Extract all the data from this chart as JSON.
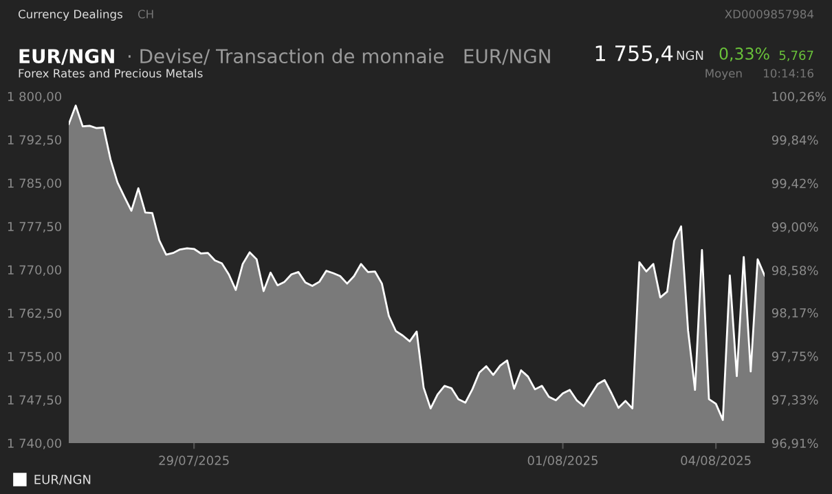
{
  "chart_data": {
    "type": "area",
    "title": "EUR/NGN",
    "subtitle": "· Devise/ Transaction de monnaie   EUR/NGN",
    "annotations": [
      "Currency Dealings",
      "CH",
      "XD0009857984",
      "Forex Rates and Precious Metals",
      "1 755,4",
      "NGN",
      "0,33%",
      "5,767",
      "Moyen",
      "10:14:16"
    ],
    "categories": [
      null,
      null,
      null,
      null,
      null,
      null,
      null,
      null,
      null,
      null,
      null,
      null,
      null,
      null,
      null,
      null,
      null,
      null,
      "29/07/2025",
      null,
      null,
      null,
      null,
      null,
      null,
      null,
      null,
      null,
      null,
      null,
      null,
      null,
      null,
      null,
      null,
      null,
      null,
      null,
      null,
      null,
      null,
      null,
      null,
      null,
      null,
      null,
      null,
      null,
      null,
      null,
      null,
      null,
      null,
      null,
      null,
      null,
      null,
      null,
      null,
      null,
      null,
      null,
      null,
      null,
      null,
      null,
      null,
      null,
      null,
      null,
      null,
      "01/08/2025",
      null,
      null,
      null,
      null,
      null,
      null,
      null,
      null,
      null,
      null,
      null,
      null,
      null,
      null,
      null,
      null,
      null,
      null,
      null,
      null,
      null,
      "04/08/2025",
      null,
      null,
      null,
      null,
      null,
      null,
      null
    ],
    "series": [
      {
        "name": "EUR/NGN",
        "color": "#ffffff",
        "values": [
          1795.2,
          1798.4,
          1794.8,
          1794.9,
          1794.5,
          1794.6,
          1789.1,
          1785.1,
          1782.6,
          1780.2,
          1784.1,
          1779.9,
          1779.8,
          1775.1,
          1772.6,
          1772.9,
          1773.5,
          1773.7,
          1773.6,
          1772.8,
          1772.9,
          1771.6,
          1771.1,
          1769.2,
          1766.5,
          1771.0,
          1773.0,
          1771.8,
          1766.3,
          1769.5,
          1767.3,
          1767.9,
          1769.2,
          1769.6,
          1767.8,
          1767.2,
          1767.9,
          1769.8,
          1769.4,
          1768.9,
          1767.6,
          1768.9,
          1771.0,
          1769.6,
          1769.7,
          1767.6,
          1762.0,
          1759.4,
          1758.6,
          1757.6,
          1759.3,
          1749.6,
          1746.0,
          1748.4,
          1749.9,
          1749.5,
          1747.6,
          1747.0,
          1749.3,
          1752.2,
          1753.3,
          1751.8,
          1753.4,
          1754.3,
          1749.4,
          1752.6,
          1751.5,
          1749.3,
          1749.9,
          1748.0,
          1747.4,
          1748.6,
          1749.2,
          1747.4,
          1746.4,
          1748.3,
          1750.2,
          1750.9,
          1748.6,
          1746.1,
          1747.3,
          1746.0,
          1771.3,
          1769.7,
          1771.0,
          1765.2,
          1766.2,
          1775.0,
          1777.5,
          1759.5,
          1749.2,
          1773.4,
          1747.6,
          1746.8,
          1744.0,
          1769.0,
          1751.6,
          1772.2,
          1752.4,
          1771.8,
          1769.0
        ]
      }
    ],
    "ylim": [
      1740,
      1800
    ],
    "yticks": [
      {
        "value": 1740,
        "label": "1 740,00"
      },
      {
        "value": 1747.5,
        "label": "1 747,50"
      },
      {
        "value": 1755,
        "label": "1 755,00"
      },
      {
        "value": 1762.5,
        "label": "1 762,50"
      },
      {
        "value": 1770,
        "label": "1 770,00"
      },
      {
        "value": 1777.5,
        "label": "1 777,50"
      },
      {
        "value": 1785,
        "label": "1 785,00"
      },
      {
        "value": 1792.5,
        "label": "1 792,50"
      },
      {
        "value": 1800,
        "label": "1 800,00"
      }
    ],
    "y2lim": [
      96.91,
      100.26
    ],
    "y2ticks": [
      {
        "value": 96.91,
        "label": "96,91%"
      },
      {
        "value": 97.33,
        "label": "97,33%"
      },
      {
        "value": 97.75,
        "label": "97,75%"
      },
      {
        "value": 98.17,
        "label": "98,17%"
      },
      {
        "value": 98.58,
        "label": "98,58%"
      },
      {
        "value": 99.0,
        "label": "99,00%"
      },
      {
        "value": 99.42,
        "label": "99,42%"
      },
      {
        "value": 99.84,
        "label": "99,84%"
      },
      {
        "value": 100.26,
        "label": "100,26%"
      }
    ],
    "grid": false,
    "legend": "bottom left"
  }
}
